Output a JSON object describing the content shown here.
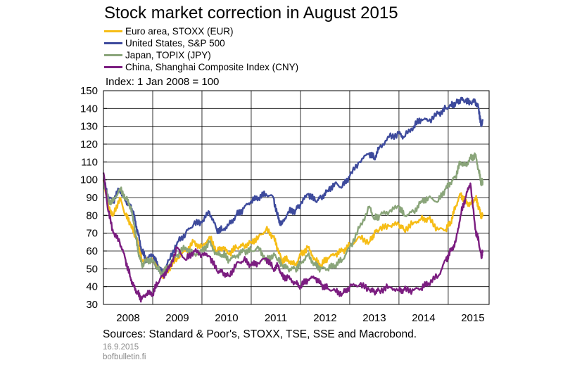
{
  "header": {
    "title": "Stock market correction in August 2015"
  },
  "legend": [
    {
      "label": "Euro area, STOXX (EUR)",
      "color": "#f6bd16"
    },
    {
      "label": "United States, S&P 500",
      "color": "#3d4a9c"
    },
    {
      "label": "Japan, TOPIX (JPY)",
      "color": "#8aa57a"
    },
    {
      "label": "China, Shanghai Composite Index (CNY)",
      "color": "#7b1d80"
    }
  ],
  "footer": {
    "sources": "Sources: Standard & Poor's, STOXX, TSE, SSE and Macrobond.",
    "date": "16.9.2015",
    "site": "bofbulletin.fi"
  },
  "chart_data": {
    "type": "line",
    "title": "Stock market correction in August 2015",
    "ylabel": "Index: 1 Jan 2008 = 100",
    "ylim": [
      30,
      150
    ],
    "yticks": [
      30,
      40,
      50,
      60,
      70,
      80,
      90,
      100,
      110,
      120,
      130,
      140,
      150
    ],
    "xlim": [
      2008.0,
      2015.83
    ],
    "xticks": [
      "2008",
      "2009",
      "2010",
      "2011",
      "2012",
      "2013",
      "2014",
      "2015"
    ],
    "grid": true,
    "legend_position": "top-left",
    "series": [
      {
        "name": "Euro area, STOXX (EUR)",
        "color": "#f6bd16",
        "x": [
          2008.0,
          2008.1,
          2008.2,
          2008.33,
          2008.45,
          2008.55,
          2008.62,
          2008.7,
          2008.78,
          2008.87,
          2009.0,
          2009.1,
          2009.2,
          2009.33,
          2009.5,
          2009.67,
          2009.83,
          2010.0,
          2010.15,
          2010.3,
          2010.42,
          2010.55,
          2010.7,
          2010.85,
          2011.0,
          2011.15,
          2011.3,
          2011.45,
          2011.55,
          2011.62,
          2011.75,
          2011.9,
          2012.0,
          2012.15,
          2012.3,
          2012.42,
          2012.55,
          2012.7,
          2012.85,
          2013.0,
          2013.2,
          2013.4,
          2013.5,
          2013.6,
          2013.8,
          2014.0,
          2014.1,
          2014.3,
          2014.45,
          2014.6,
          2014.8,
          2014.95,
          2015.05,
          2015.15,
          2015.25,
          2015.35,
          2015.45,
          2015.55,
          2015.62,
          2015.67,
          2015.7
        ],
        "y": [
          100,
          85,
          80,
          90,
          80,
          75,
          70,
          65,
          55,
          55,
          55,
          52,
          45,
          50,
          56,
          60,
          65,
          62,
          68,
          60,
          62,
          58,
          62,
          63,
          65,
          68,
          72,
          68,
          60,
          55,
          55,
          52,
          58,
          62,
          55,
          52,
          56,
          58,
          60,
          63,
          68,
          65,
          70,
          72,
          74,
          75,
          72,
          76,
          78,
          78,
          72,
          72,
          76,
          85,
          92,
          88,
          86,
          90,
          85,
          79,
          80
        ]
      },
      {
        "name": "United States, S&P 500",
        "color": "#3d4a9c",
        "x": [
          2008.0,
          2008.1,
          2008.2,
          2008.33,
          2008.45,
          2008.55,
          2008.62,
          2008.7,
          2008.78,
          2008.87,
          2009.0,
          2009.1,
          2009.2,
          2009.33,
          2009.5,
          2009.67,
          2009.83,
          2010.0,
          2010.15,
          2010.3,
          2010.42,
          2010.55,
          2010.7,
          2010.85,
          2011.0,
          2011.15,
          2011.3,
          2011.45,
          2011.55,
          2011.62,
          2011.75,
          2011.9,
          2012.0,
          2012.15,
          2012.3,
          2012.42,
          2012.55,
          2012.7,
          2012.85,
          2013.0,
          2013.2,
          2013.4,
          2013.5,
          2013.6,
          2013.8,
          2014.0,
          2014.1,
          2014.3,
          2014.45,
          2014.6,
          2014.8,
          2014.95,
          2015.05,
          2015.15,
          2015.25,
          2015.35,
          2015.45,
          2015.55,
          2015.62,
          2015.67,
          2015.7
        ],
        "y": [
          100,
          90,
          88,
          95,
          88,
          85,
          80,
          70,
          60,
          55,
          58,
          52,
          47,
          55,
          65,
          70,
          75,
          76,
          82,
          72,
          72,
          75,
          80,
          84,
          88,
          90,
          92,
          90,
          78,
          75,
          82,
          83,
          86,
          92,
          88,
          90,
          94,
          98,
          96,
          102,
          110,
          115,
          112,
          118,
          124,
          126,
          124,
          130,
          134,
          133,
          137,
          140,
          142,
          143,
          145,
          144,
          143,
          144,
          140,
          130,
          134
        ]
      },
      {
        "name": "Japan, TOPIX (JPY)",
        "color": "#8aa57a",
        "x": [
          2008.0,
          2008.1,
          2008.2,
          2008.33,
          2008.45,
          2008.55,
          2008.62,
          2008.7,
          2008.78,
          2008.87,
          2009.0,
          2009.1,
          2009.2,
          2009.33,
          2009.5,
          2009.67,
          2009.83,
          2010.0,
          2010.15,
          2010.3,
          2010.42,
          2010.55,
          2010.7,
          2010.85,
          2011.0,
          2011.15,
          2011.3,
          2011.45,
          2011.55,
          2011.62,
          2011.75,
          2011.9,
          2012.0,
          2012.15,
          2012.3,
          2012.42,
          2012.55,
          2012.7,
          2012.85,
          2013.0,
          2013.2,
          2013.4,
          2013.5,
          2013.6,
          2013.8,
          2014.0,
          2014.1,
          2014.3,
          2014.45,
          2014.6,
          2014.8,
          2014.95,
          2015.05,
          2015.15,
          2015.25,
          2015.35,
          2015.45,
          2015.55,
          2015.62,
          2015.67,
          2015.7
        ],
        "y": [
          100,
          88,
          88,
          95,
          90,
          85,
          75,
          60,
          52,
          55,
          55,
          50,
          47,
          52,
          58,
          62,
          58,
          60,
          65,
          58,
          58,
          55,
          57,
          60,
          60,
          62,
          55,
          58,
          55,
          52,
          50,
          50,
          53,
          58,
          52,
          50,
          50,
          52,
          55,
          62,
          73,
          85,
          78,
          80,
          82,
          85,
          80,
          82,
          88,
          90,
          88,
          95,
          98,
          102,
          110,
          108,
          112,
          114,
          105,
          98,
          99
        ]
      },
      {
        "name": "China, Shanghai Composite Index (CNY)",
        "color": "#7b1d80",
        "x": [
          2008.0,
          2008.1,
          2008.2,
          2008.33,
          2008.45,
          2008.55,
          2008.62,
          2008.7,
          2008.78,
          2008.87,
          2009.0,
          2009.1,
          2009.2,
          2009.33,
          2009.5,
          2009.67,
          2009.83,
          2010.0,
          2010.15,
          2010.3,
          2010.42,
          2010.55,
          2010.7,
          2010.85,
          2011.0,
          2011.15,
          2011.3,
          2011.45,
          2011.55,
          2011.62,
          2011.75,
          2011.9,
          2012.0,
          2012.15,
          2012.3,
          2012.42,
          2012.55,
          2012.7,
          2012.85,
          2013.0,
          2013.2,
          2013.4,
          2013.5,
          2013.6,
          2013.8,
          2014.0,
          2014.1,
          2014.3,
          2014.45,
          2014.6,
          2014.8,
          2014.95,
          2015.05,
          2015.15,
          2015.25,
          2015.35,
          2015.45,
          2015.55,
          2015.62,
          2015.67,
          2015.7
        ],
        "y": [
          104,
          82,
          70,
          65,
          55,
          45,
          40,
          36,
          33,
          36,
          36,
          42,
          46,
          50,
          62,
          55,
          60,
          58,
          57,
          49,
          48,
          46,
          53,
          55,
          52,
          53,
          56,
          50,
          52,
          46,
          45,
          42,
          40,
          44,
          45,
          41,
          39,
          38,
          36,
          40,
          41,
          38,
          37,
          38,
          40,
          38,
          38,
          38,
          39,
          42,
          46,
          55,
          60,
          65,
          80,
          90,
          98,
          72,
          65,
          57,
          60
        ]
      }
    ]
  }
}
